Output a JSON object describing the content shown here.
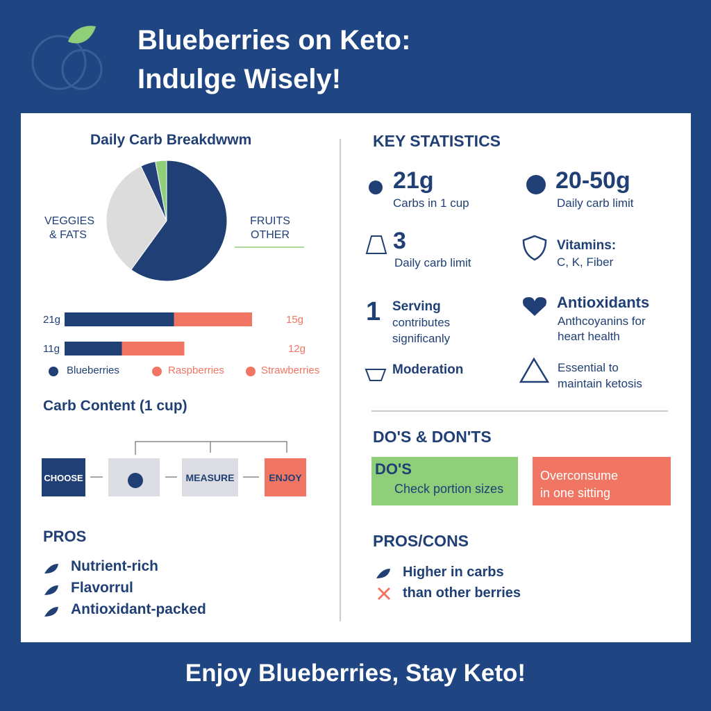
{
  "header": {
    "title_line1": "Blueberries on Keto:",
    "title_line2": "Indulge Wisely!"
  },
  "breakdown": {
    "title": "Daily Carb Breakdwwm",
    "pie": {
      "values": [
        60,
        33,
        4,
        3
      ],
      "colors": [
        "#1f3f75",
        "#dcdcdc",
        "#24407a",
        "#8fcf7a"
      ]
    },
    "left_label": [
      "VEGGIES",
      "& FATS"
    ],
    "right_label": [
      "FRUITS",
      "OTHER"
    ]
  },
  "bars": {
    "colors": [
      "#1f3f75",
      "#f07563"
    ],
    "rows": [
      {
        "left": {
          "value": 21,
          "label": "21g"
        },
        "right": {
          "value": 15,
          "label": "15g"
        }
      },
      {
        "left": {
          "value": 11,
          "label": "11g"
        },
        "right": {
          "value": 12,
          "label": "12g"
        }
      }
    ],
    "legend": [
      "Blueberries",
      "Raspberries",
      "Strawberries"
    ]
  },
  "carb_content": {
    "title": "Carb Content (1 cup)",
    "steps": [
      "CHOOSE",
      "MEASURE",
      "ENJOY"
    ]
  },
  "pros": {
    "title": "PROS",
    "items": [
      "Nutrient-rich",
      "Flavorrul",
      "Antioxidant-packed"
    ]
  },
  "stats": {
    "title": "KEY STATISTICS",
    "c21": {
      "value": "21g",
      "label": "Carbs in 1 cup"
    },
    "c2050": {
      "value": "20-50g",
      "label": "Daily carb limit"
    },
    "c3": {
      "value": "3",
      "label": "Daily carb limit"
    },
    "vitamins": {
      "value": "Vitamins:",
      "label": "C, K, Fiber"
    },
    "serving": {
      "value": "1",
      "heading": "Serving",
      "lines": [
        "contributes",
        "significanly"
      ]
    },
    "antioxidants": {
      "value": "Antioxidants",
      "lines": [
        "Anthcoyanins for",
        "heart health"
      ]
    },
    "moderation": "Moderation",
    "essential": [
      "Essential to",
      "maintain ketosis"
    ]
  },
  "dos": {
    "title": "DO'S & DON'TS",
    "do_title": "DO'S",
    "do_item": "Check portion sizes",
    "dont_lines": [
      "Overconsume",
      "in one sitting"
    ]
  },
  "pros_cons": {
    "title": "PROS/CONS",
    "items": [
      "Higher in carbs",
      "than other berries"
    ]
  },
  "footer": "Enjoy Blueberries, Stay Keto!"
}
